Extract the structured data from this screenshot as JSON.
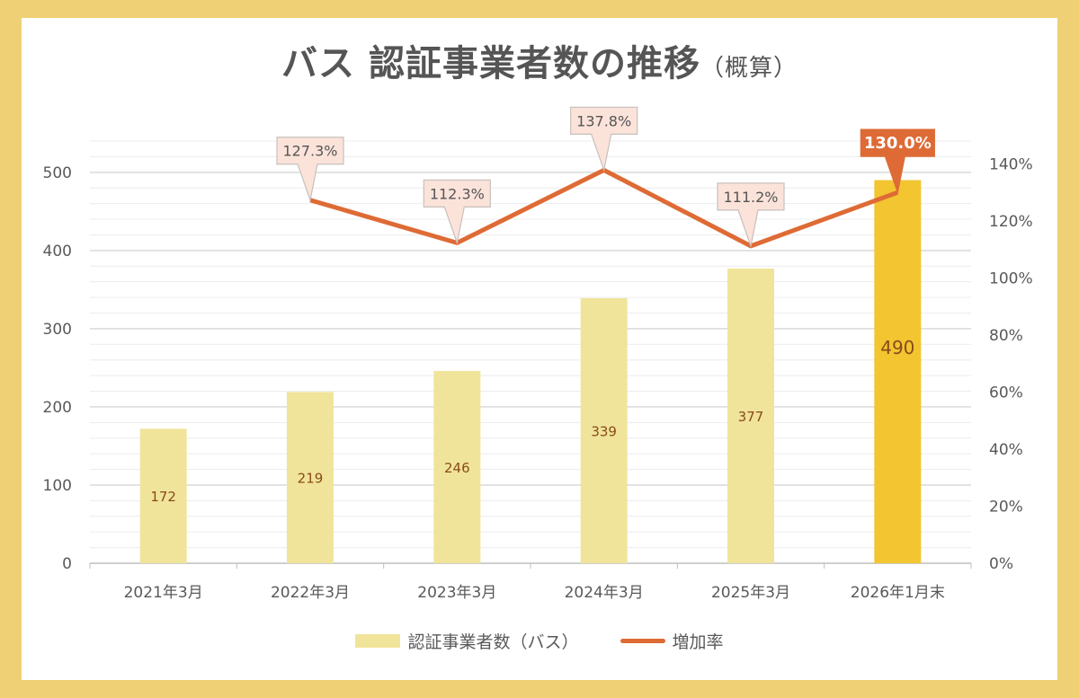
{
  "title": "バス  認証事業者数の推移",
  "title_note": "（概算）",
  "chart_data": {
    "type": "bar+line",
    "categories": [
      "2021年3月",
      "2022年3月",
      "2023年3月",
      "2024年3月",
      "2025年3月",
      "2026年1月末"
    ],
    "series": [
      {
        "name": "認証事業者数（バス）",
        "type": "bar",
        "axis": "left",
        "values": [
          172,
          219,
          246,
          339,
          377,
          490
        ],
        "labels": [
          "172",
          "219",
          "246",
          "339",
          "377",
          "490"
        ],
        "color": "#f0e49a",
        "highlight_color": "#f2c531"
      },
      {
        "name": "増加率",
        "type": "line",
        "axis": "right",
        "values": [
          null,
          127.3,
          112.3,
          137.8,
          111.2,
          130.0
        ],
        "labels": [
          "",
          "127.3%",
          "112.3%",
          "137.8%",
          "111.2%",
          "130.0%"
        ],
        "color": "#de6b35"
      }
    ],
    "y_left": {
      "ticks": [
        0,
        100,
        200,
        300,
        400,
        500
      ],
      "range": [
        0,
        540
      ]
    },
    "y_right": {
      "ticks": [
        "0%",
        "20%",
        "40%",
        "60%",
        "80%",
        "100%",
        "120%",
        "140%"
      ],
      "tick_values": [
        0,
        20,
        40,
        60,
        80,
        100,
        120,
        140
      ],
      "range": [
        0,
        148
      ]
    },
    "grid": true,
    "legend": "bottom"
  }
}
